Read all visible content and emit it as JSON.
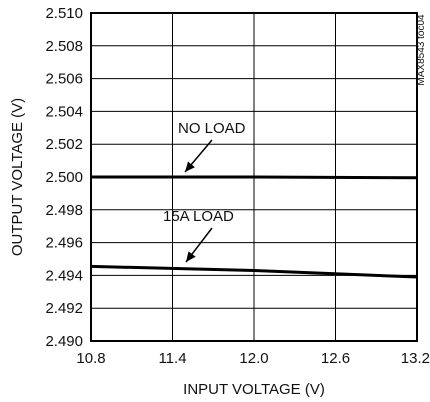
{
  "chart_data": {
    "type": "line",
    "xlabel": "INPUT VOLTAGE (V)",
    "ylabel": "OUTPUT VOLTAGE (V)",
    "xlim": [
      10.8,
      13.2
    ],
    "ylim": [
      2.49,
      2.51
    ],
    "x_ticks": [
      "10.8",
      "11.4",
      "12.0",
      "12.6",
      "13.2"
    ],
    "y_ticks": [
      "2.510",
      "2.508",
      "2.506",
      "2.504",
      "2.502",
      "2.500",
      "2.498",
      "2.496",
      "2.494",
      "2.492",
      "2.490"
    ],
    "grid": true,
    "series": [
      {
        "name": "NO LOAD",
        "x": [
          10.8,
          12.0,
          13.2
        ],
        "y": [
          2.5,
          2.5,
          2.49995
        ]
      },
      {
        "name": "15A LOAD",
        "x": [
          10.8,
          12.0,
          13.2
        ],
        "y": [
          2.49455,
          2.4943,
          2.4939
        ]
      }
    ],
    "annotations": [
      "NO LOAD",
      "15A LOAD"
    ],
    "side_label": "MAX8543 toc04"
  }
}
